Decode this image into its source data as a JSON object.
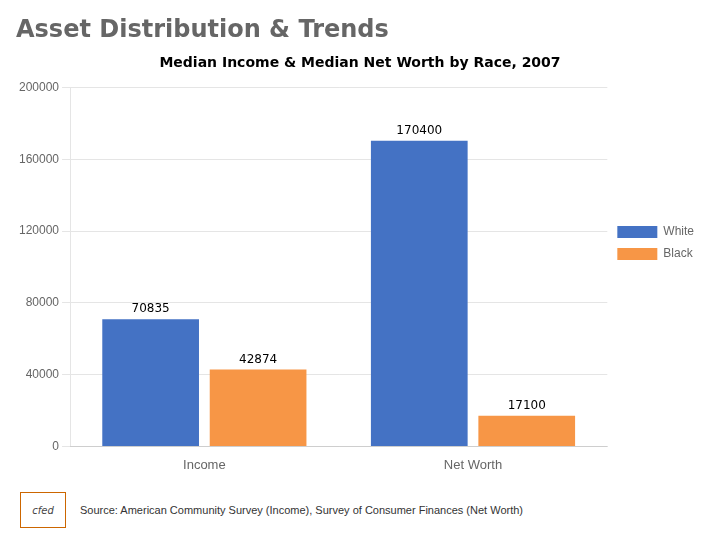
{
  "chart_data": {
    "type": "bar",
    "title": "Asset Distribution & Trends",
    "subtitle": "Median Income & Median Net Worth by Race, 2007",
    "source": "Source: American Community Survey (Income), Survey of Consumer Finances (Net Worth)",
    "annotations": [
      "cfed"
    ],
    "categories": [
      "Income",
      "Net Worth"
    ],
    "series": [
      {
        "name": "White",
        "color": "#4472C4",
        "values": [
          70835,
          170400
        ]
      },
      {
        "name": "Black",
        "color": "#F79646",
        "values": [
          42874,
          17100
        ]
      }
    ],
    "ylim": [
      0,
      200000
    ],
    "yticks": [
      0,
      40000,
      80000,
      120000,
      160000,
      200000
    ],
    "grid": true,
    "legend": "right",
    "data_labels": true
  }
}
